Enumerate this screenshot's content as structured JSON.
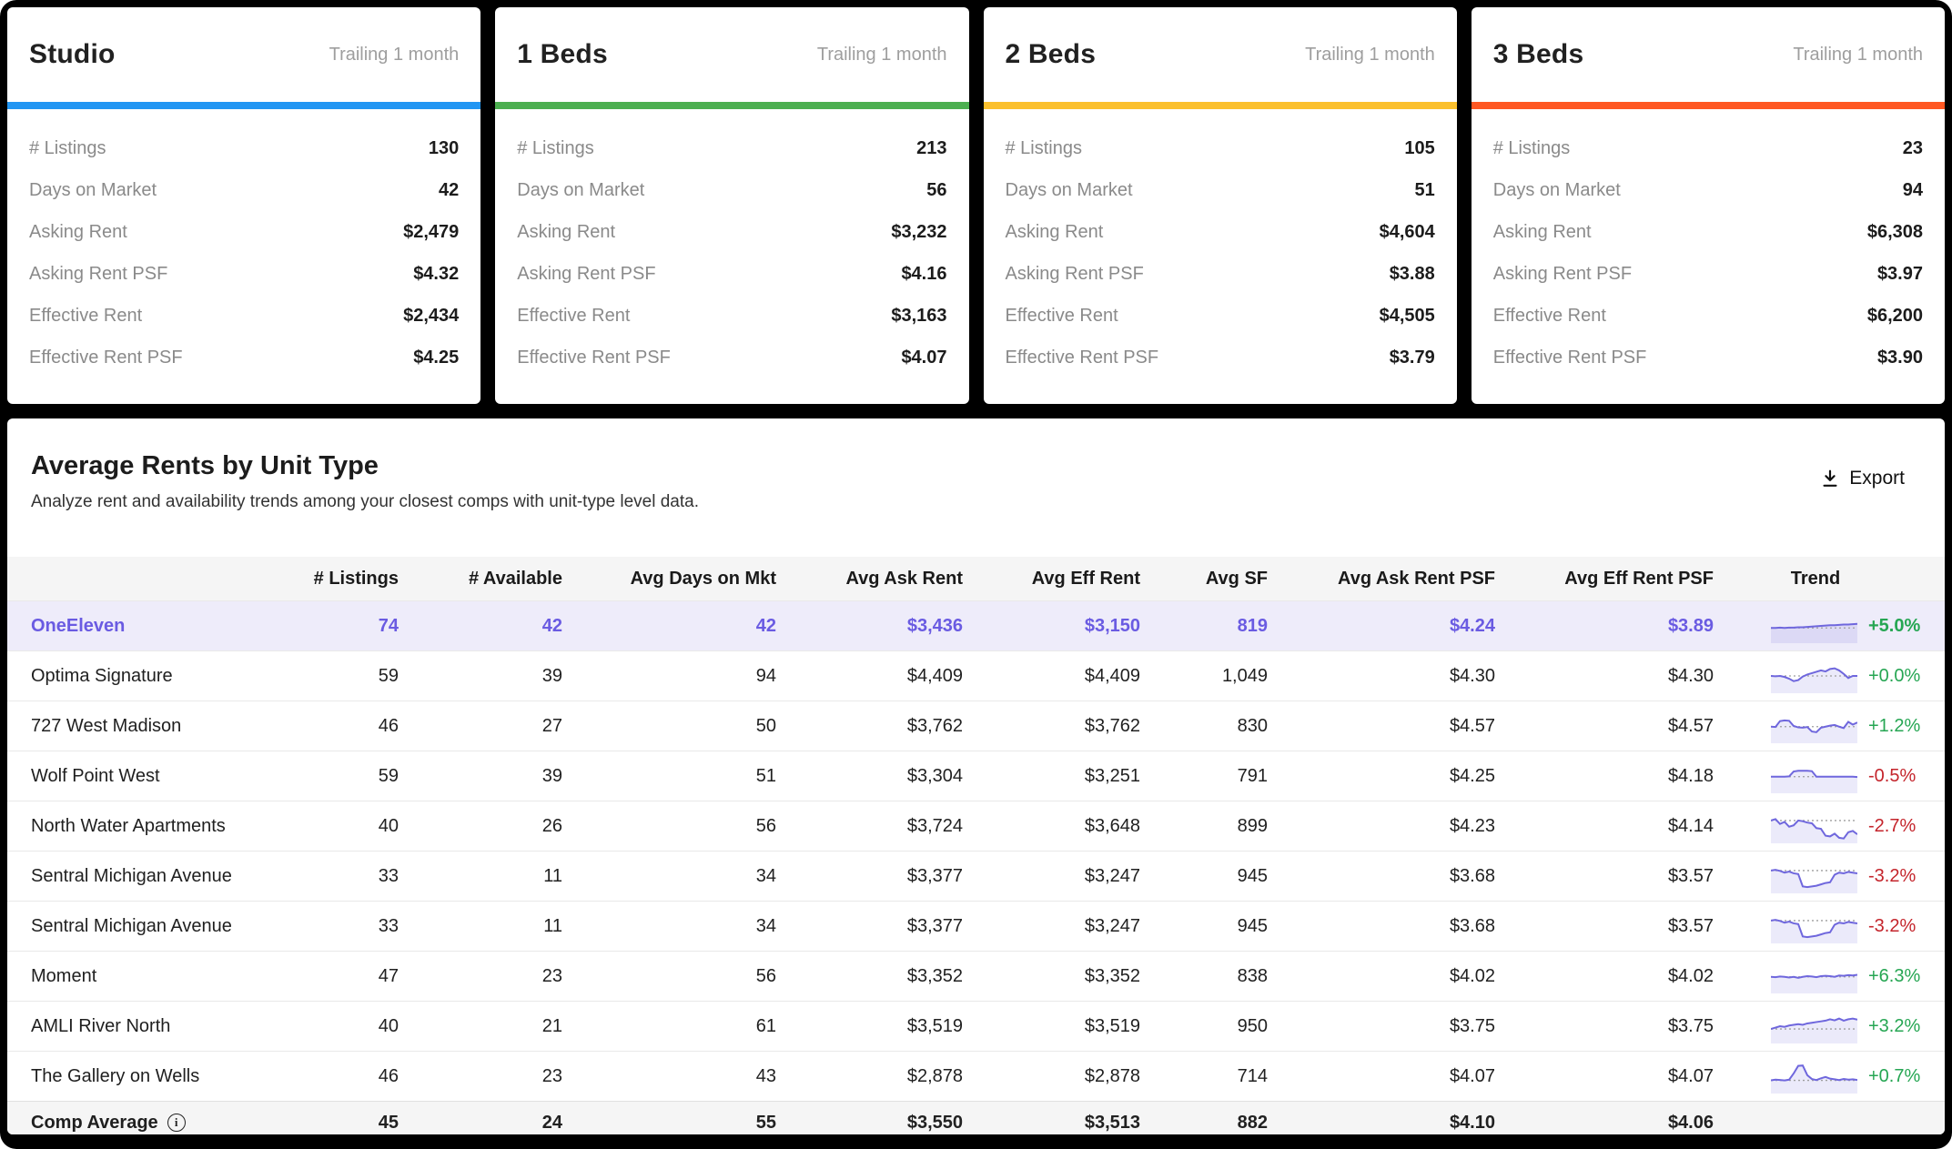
{
  "cards": [
    {
      "title": "Studio",
      "period": "Trailing 1 month",
      "accent": "#2196f3",
      "stats": [
        {
          "label": "# Listings",
          "value": "130"
        },
        {
          "label": "Days on Market",
          "value": "42"
        },
        {
          "label": "Asking Rent",
          "value": "$2,479"
        },
        {
          "label": "Asking Rent PSF",
          "value": "$4.32"
        },
        {
          "label": "Effective Rent",
          "value": "$2,434"
        },
        {
          "label": "Effective Rent PSF",
          "value": "$4.25"
        }
      ]
    },
    {
      "title": "1 Beds",
      "period": "Trailing 1 month",
      "accent": "#4caf50",
      "stats": [
        {
          "label": "# Listings",
          "value": "213"
        },
        {
          "label": "Days on Market",
          "value": "56"
        },
        {
          "label": "Asking Rent",
          "value": "$3,232"
        },
        {
          "label": "Asking Rent PSF",
          "value": "$4.16"
        },
        {
          "label": "Effective Rent",
          "value": "$3,163"
        },
        {
          "label": "Effective Rent PSF",
          "value": "$4.07"
        }
      ]
    },
    {
      "title": "2 Beds",
      "period": "Trailing 1 month",
      "accent": "#fbc02d",
      "stats": [
        {
          "label": "# Listings",
          "value": "105"
        },
        {
          "label": "Days on Market",
          "value": "51"
        },
        {
          "label": "Asking Rent",
          "value": "$4,604"
        },
        {
          "label": "Asking Rent PSF",
          "value": "$3.88"
        },
        {
          "label": "Effective Rent",
          "value": "$4,505"
        },
        {
          "label": "Effective Rent PSF",
          "value": "$3.79"
        }
      ]
    },
    {
      "title": "3 Beds",
      "period": "Trailing 1 month",
      "accent": "#ff5722",
      "stats": [
        {
          "label": "# Listings",
          "value": "23"
        },
        {
          "label": "Days on Market",
          "value": "94"
        },
        {
          "label": "Asking Rent",
          "value": "$6,308"
        },
        {
          "label": "Asking Rent PSF",
          "value": "$3.97"
        },
        {
          "label": "Effective Rent",
          "value": "$6,200"
        },
        {
          "label": "Effective Rent PSF",
          "value": "$3.90"
        }
      ]
    }
  ],
  "section": {
    "title": "Average Rents by Unit Type",
    "subtitle": "Analyze rent and availability trends among your closest comps with unit-type level data.",
    "export_label": "Export"
  },
  "table": {
    "columns": [
      "",
      "# Listings",
      "# Available",
      "Avg Days on Mkt",
      "Avg Ask Rent",
      "Avg Eff Rent",
      "Avg SF",
      "Avg Ask Rent PSF",
      "Avg Eff Rent PSF",
      "Trend"
    ],
    "rows": [
      {
        "name": "OneEleven",
        "listings": "74",
        "available": "42",
        "days": "42",
        "ask": "$3,436",
        "eff": "$3,150",
        "sf": "819",
        "ask_psf": "$4.24",
        "eff_psf": "$3.89",
        "pct": "+5.0%",
        "highlight": true,
        "trend_points": [
          56,
          56,
          55,
          56,
          55,
          55,
          54,
          54,
          53,
          52,
          51,
          50,
          49,
          48,
          48,
          47,
          46,
          46,
          45,
          44
        ]
      },
      {
        "name": "Optima Signature",
        "listings": "59",
        "available": "39",
        "days": "94",
        "ask": "$4,409",
        "eff": "$4,409",
        "sf": "1,049",
        "ask_psf": "$4.30",
        "eff_psf": "$4.30",
        "pct": "+0.0%",
        "highlight": false,
        "trend_points": [
          50,
          51,
          50,
          53,
          58,
          65,
          62,
          52,
          46,
          42,
          38,
          34,
          37,
          30,
          28,
          34,
          44,
          56,
          50,
          50
        ]
      },
      {
        "name": "727 West Madison",
        "listings": "46",
        "available": "27",
        "days": "50",
        "ask": "$3,762",
        "eff": "$3,762",
        "sf": "830",
        "ask_psf": "$4.57",
        "eff_psf": "$4.57",
        "pct": "+1.2%",
        "highlight": false,
        "trend_points": [
          52,
          53,
          36,
          34,
          35,
          50,
          54,
          55,
          53,
          66,
          68,
          55,
          52,
          49,
          47,
          52,
          56,
          38,
          46,
          40
        ]
      },
      {
        "name": "Wolf Point West",
        "listings": "59",
        "available": "39",
        "days": "51",
        "ask": "$3,304",
        "eff": "$3,251",
        "sf": "791",
        "ask_psf": "$4.25",
        "eff_psf": "$4.18",
        "pct": "-0.5%",
        "highlight": false,
        "trend_points": [
          52,
          52,
          52,
          52,
          51,
          37,
          35,
          35,
          35,
          36,
          52,
          52,
          52,
          52,
          52,
          52,
          52,
          52,
          52,
          53
        ]
      },
      {
        "name": "North Water Apartments",
        "listings": "40",
        "available": "26",
        "days": "56",
        "ask": "$3,724",
        "eff": "$3,648",
        "sf": "899",
        "ask_psf": "$4.23",
        "eff_psf": "$4.14",
        "pct": "-2.7%",
        "highlight": false,
        "trend_points": [
          34,
          30,
          44,
          38,
          52,
          48,
          34,
          36,
          40,
          42,
          56,
          58,
          78,
          80,
          72,
          84,
          86,
          68,
          64,
          74
        ]
      },
      {
        "name": "Sentral Michigan Avenue",
        "listings": "33",
        "available": "11",
        "days": "34",
        "ask": "$3,377",
        "eff": "$3,247",
        "sf": "945",
        "ask_psf": "$3.68",
        "eff_psf": "$3.57",
        "pct": "-3.2%",
        "highlight": false,
        "trend_points": [
          34,
          32,
          35,
          40,
          37,
          42,
          44,
          80,
          82,
          80,
          78,
          74,
          70,
          68,
          46,
          40,
          42,
          38,
          40,
          42
        ]
      },
      {
        "name": "Sentral Michigan Avenue",
        "listings": "33",
        "available": "11",
        "days": "34",
        "ask": "$3,377",
        "eff": "$3,247",
        "sf": "945",
        "ask_psf": "$3.68",
        "eff_psf": "$3.57",
        "pct": "-3.2%",
        "highlight": false,
        "trend_points": [
          34,
          32,
          35,
          40,
          37,
          42,
          44,
          80,
          82,
          80,
          78,
          74,
          70,
          68,
          46,
          40,
          42,
          38,
          40,
          42
        ]
      },
      {
        "name": "Moment",
        "listings": "47",
        "available": "23",
        "days": "56",
        "ask": "$3,352",
        "eff": "$3,352",
        "sf": "838",
        "ask_psf": "$4.02",
        "eff_psf": "$4.02",
        "pct": "+6.3%",
        "highlight": false,
        "trend_points": [
          52,
          53,
          51,
          52,
          54,
          52,
          55,
          52,
          50,
          51,
          53,
          50,
          49,
          50,
          52,
          48,
          49,
          47,
          48,
          46
        ]
      },
      {
        "name": "AMLI River North",
        "listings": "40",
        "available": "21",
        "days": "61",
        "ask": "$3,519",
        "eff": "$3,519",
        "sf": "950",
        "ask_psf": "$3.75",
        "eff_psf": "$3.75",
        "pct": "+3.2%",
        "highlight": false,
        "trend_points": [
          58,
          54,
          50,
          52,
          48,
          46,
          44,
          46,
          42,
          40,
          38,
          36,
          34,
          30,
          33,
          28,
          34,
          30,
          28,
          31
        ]
      },
      {
        "name": "The Gallery on Wells",
        "listings": "46",
        "available": "23",
        "days": "43",
        "ask": "$2,878",
        "eff": "$2,878",
        "sf": "714",
        "ask_psf": "$4.07",
        "eff_psf": "$4.07",
        "pct": "+0.7%",
        "highlight": false,
        "trend_points": [
          62,
          60,
          61,
          62,
          60,
          42,
          20,
          19,
          47,
          58,
          61,
          56,
          52,
          57,
          59,
          61,
          58,
          60,
          59,
          61
        ]
      }
    ],
    "comp_average": {
      "name": "Comp Average",
      "listings": "45",
      "available": "24",
      "days": "55",
      "ask": "$3,550",
      "eff": "$3,513",
      "sf": "882",
      "ask_psf": "$4.10",
      "eff_psf": "$4.06"
    }
  },
  "colors": {
    "positive": "#26a653",
    "negative": "#c4242b",
    "sparkline": "#6f67dd",
    "sparkline_fill": "rgba(111,103,221,0.14)",
    "highlight_text": "#6a5be2",
    "highlight_bg": "#eeecfa"
  }
}
